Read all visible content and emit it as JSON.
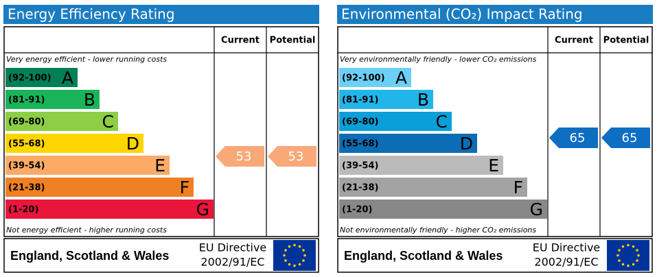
{
  "panels": [
    {
      "title": "Energy Efficiency Rating",
      "columns": [
        "Current",
        "Potential"
      ],
      "top_note": "Very energy efficient - lower running costs",
      "bands": [
        {
          "range": "(92-100)",
          "letter": "A"
        },
        {
          "range": "(81-91)",
          "letter": "B"
        },
        {
          "range": "(69-80)",
          "letter": "C"
        },
        {
          "range": "(55-68)",
          "letter": "D"
        },
        {
          "range": "(39-54)",
          "letter": "E"
        },
        {
          "range": "(21-38)",
          "letter": "F"
        },
        {
          "range": "(1-20)",
          "letter": "G"
        }
      ],
      "bottom_note": "Not energy efficient - higher running costs",
      "current": 53,
      "potential": 53,
      "footer": {
        "region": "England, Scotland & Wales",
        "directive": [
          "EU Directive",
          "2002/91/EC"
        ]
      }
    },
    {
      "title": "Environmental (CO₂) Impact Rating",
      "columns": [
        "Current",
        "Potential"
      ],
      "top_note": "Very environmentally friendly - lower CO₂ emissions",
      "bands": [
        {
          "range": "(92-100)",
          "letter": "A"
        },
        {
          "range": "(81-91)",
          "letter": "B"
        },
        {
          "range": "(69-80)",
          "letter": "C"
        },
        {
          "range": "(55-68)",
          "letter": "D"
        },
        {
          "range": "(39-54)",
          "letter": "E"
        },
        {
          "range": "(21-38)",
          "letter": "F"
        },
        {
          "range": "(1-20)",
          "letter": "G"
        }
      ],
      "bottom_note": "Not environmentally friendly - higher CO₂ emissions",
      "current": 65,
      "potential": 65,
      "footer": {
        "region": "England, Scotland & Wales",
        "directive": [
          "EU Directive",
          "2002/91/EC"
        ]
      }
    }
  ]
}
